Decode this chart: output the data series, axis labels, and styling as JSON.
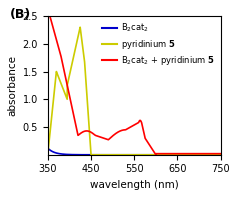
{
  "title": "(B)",
  "xlabel": "wavelength (nm)",
  "ylabel": "absorbance",
  "xlim": [
    350,
    750
  ],
  "ylim": [
    0,
    2.5
  ],
  "yticks": [
    0.5,
    1.0,
    1.5,
    2.0,
    2.5
  ],
  "xticks": [
    350,
    450,
    550,
    650,
    750
  ],
  "legend_labels": [
    "B₂cat₂",
    "pyridinium 5",
    "B₂cat₂ + pyridinium 5"
  ],
  "legend_colors": [
    "#0000cc",
    "#cccc00",
    "#ff0000"
  ],
  "background_color": "#ffffff",
  "figsize": [
    2.37,
    1.97
  ],
  "dpi": 100
}
